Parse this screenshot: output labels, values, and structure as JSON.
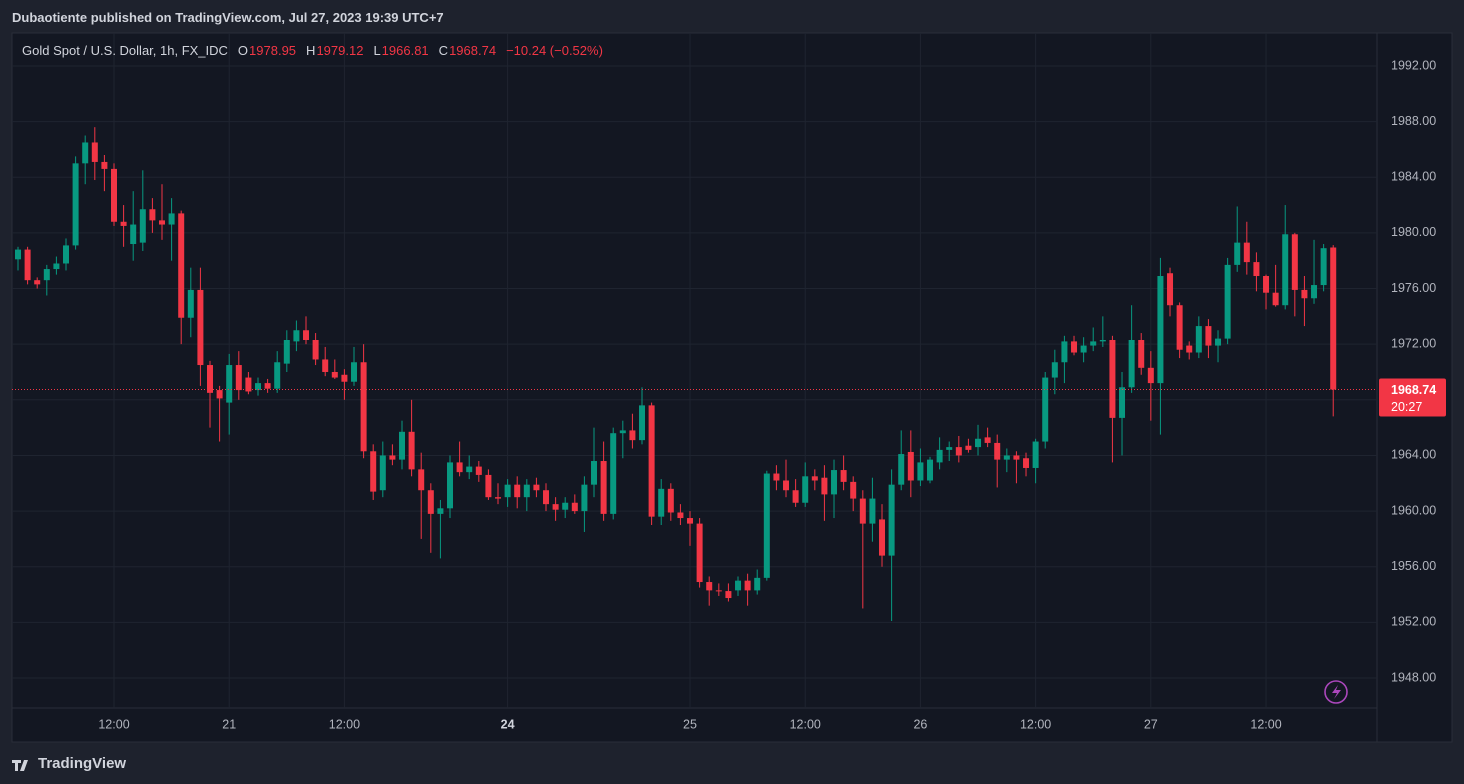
{
  "header": "Dubaotiente published on TradingView.com, Jul 27, 2023 19:39 UTC+7",
  "footer": "TradingView",
  "chart_data": {
    "type": "candlestick",
    "title": "Gold Spot / U.S. Dollar, 1h, FX_IDC",
    "legend": [
      {
        "label": "O",
        "value": "1978.95"
      },
      {
        "label": "H",
        "value": "1979.12"
      },
      {
        "label": "L",
        "value": "1966.81"
      },
      {
        "label": "C",
        "value": "1968.74"
      }
    ],
    "change": "−10.24 (−0.52%)",
    "up_color": "#089981",
    "down_color": "#f23645",
    "last_price": 1968.74,
    "countdown": "20:27",
    "grid": true,
    "xlim": [
      -0.625,
      141.56
    ],
    "xticks": [
      {
        "value": 10,
        "label": "12:00"
      },
      {
        "value": 22,
        "label": "21"
      },
      {
        "value": 34,
        "label": "12:00"
      },
      {
        "value": 51,
        "label": "24"
      },
      {
        "value": 70,
        "label": "25"
      },
      {
        "value": 82,
        "label": "12:00"
      },
      {
        "value": 94,
        "label": "26"
      },
      {
        "value": 106,
        "label": "12:00"
      },
      {
        "value": 118,
        "label": "27"
      },
      {
        "value": 130,
        "label": "12:00"
      }
    ],
    "ylim": [
      1943.4,
      1994.37
    ],
    "yticks": [
      {
        "value": 1948,
        "label": "1948.00"
      },
      {
        "value": 1952,
        "label": "1952.00"
      },
      {
        "value": 1956,
        "label": "1956.00"
      },
      {
        "value": 1960,
        "label": "1960.00"
      },
      {
        "value": 1964,
        "label": "1964.00"
      },
      {
        "value": 1968,
        "label": "1968.00"
      },
      {
        "value": 1972,
        "label": "1972.00"
      },
      {
        "value": 1976,
        "label": "1976.00"
      },
      {
        "value": 1980,
        "label": "1980.00"
      },
      {
        "value": 1984,
        "label": "1984.00"
      },
      {
        "value": 1988,
        "label": "1988.00"
      },
      {
        "value": 1992,
        "label": "1992.00"
      }
    ],
    "ohlc": [
      [
        1978.1,
        1979.0,
        1977.3,
        1978.8
      ],
      [
        1978.8,
        1979.0,
        1976.3,
        1976.6
      ],
      [
        1976.6,
        1976.8,
        1976.0,
        1976.3
      ],
      [
        1976.6,
        1977.7,
        1975.5,
        1977.4
      ],
      [
        1977.4,
        1978.3,
        1977.0,
        1977.8
      ],
      [
        1977.8,
        1979.6,
        1977.3,
        1979.1
      ],
      [
        1979.1,
        1985.5,
        1978.8,
        1985.0
      ],
      [
        1985.0,
        1987.0,
        1983.5,
        1986.5
      ],
      [
        1986.5,
        1987.6,
        1983.8,
        1985.1
      ],
      [
        1985.1,
        1985.6,
        1983.0,
        1984.6
      ],
      [
        1984.6,
        1985.0,
        1980.5,
        1980.8
      ],
      [
        1980.8,
        1982.0,
        1979.0,
        1980.5
      ],
      [
        1979.2,
        1983.0,
        1978.0,
        1980.6
      ],
      [
        1979.3,
        1984.5,
        1978.7,
        1981.7
      ],
      [
        1981.7,
        1982.5,
        1980.0,
        1980.9
      ],
      [
        1980.9,
        1983.5,
        1979.5,
        1980.6
      ],
      [
        1980.6,
        1982.5,
        1978.0,
        1981.4
      ],
      [
        1981.4,
        1981.6,
        1972.0,
        1973.9
      ],
      [
        1973.9,
        1977.5,
        1972.5,
        1975.9
      ],
      [
        1975.9,
        1977.5,
        1969.0,
        1970.5
      ],
      [
        1970.5,
        1970.8,
        1966.0,
        1968.5
      ],
      [
        1968.7,
        1969.0,
        1965.0,
        1968.1
      ],
      [
        1967.8,
        1971.3,
        1965.5,
        1970.5
      ],
      [
        1970.5,
        1971.5,
        1968.0,
        1968.7
      ],
      [
        1969.6,
        1970.0,
        1968.4,
        1968.6
      ],
      [
        1968.7,
        1969.6,
        1968.3,
        1969.2
      ],
      [
        1969.2,
        1969.5,
        1968.5,
        1968.8
      ],
      [
        1968.8,
        1971.5,
        1968.5,
        1970.7
      ],
      [
        1970.6,
        1973.0,
        1970.0,
        1972.3
      ],
      [
        1972.2,
        1973.7,
        1971.5,
        1973.0
      ],
      [
        1973.0,
        1974.0,
        1972.0,
        1972.3
      ],
      [
        1972.3,
        1972.8,
        1970.5,
        1970.9
      ],
      [
        1970.9,
        1971.8,
        1969.7,
        1970.0
      ],
      [
        1970.0,
        1970.9,
        1969.5,
        1969.6
      ],
      [
        1969.8,
        1970.2,
        1968.0,
        1969.3
      ],
      [
        1969.3,
        1971.8,
        1969.0,
        1970.7
      ],
      [
        1970.7,
        1972.0,
        1963.8,
        1964.3
      ],
      [
        1964.3,
        1964.8,
        1960.8,
        1961.4
      ],
      [
        1961.5,
        1965.0,
        1961.0,
        1964.0
      ],
      [
        1964.0,
        1964.8,
        1963.3,
        1963.7
      ],
      [
        1963.7,
        1966.5,
        1963.0,
        1965.7
      ],
      [
        1965.7,
        1968.0,
        1962.5,
        1963.0
      ],
      [
        1963.0,
        1964.2,
        1958.0,
        1961.5
      ],
      [
        1961.5,
        1962.0,
        1957.0,
        1959.8
      ],
      [
        1959.8,
        1960.8,
        1956.6,
        1960.2
      ],
      [
        1960.2,
        1964.0,
        1959.5,
        1963.5
      ],
      [
        1963.5,
        1965.0,
        1962.5,
        1962.8
      ],
      [
        1962.8,
        1964.0,
        1962.3,
        1963.2
      ],
      [
        1963.2,
        1963.6,
        1962.1,
        1962.6
      ],
      [
        1962.6,
        1963.0,
        1960.8,
        1961.0
      ],
      [
        1961.0,
        1962.0,
        1960.5,
        1960.9
      ],
      [
        1961.0,
        1962.3,
        1960.3,
        1961.9
      ],
      [
        1961.9,
        1962.5,
        1960.2,
        1961.0
      ],
      [
        1961.0,
        1962.3,
        1960.0,
        1961.9
      ],
      [
        1961.9,
        1962.4,
        1961.0,
        1961.5
      ],
      [
        1961.5,
        1962.0,
        1960.0,
        1960.5
      ],
      [
        1960.5,
        1961.0,
        1959.3,
        1960.1
      ],
      [
        1960.1,
        1961.0,
        1959.5,
        1960.6
      ],
      [
        1960.6,
        1961.2,
        1959.8,
        1960.0
      ],
      [
        1960.0,
        1962.5,
        1958.5,
        1961.9
      ],
      [
        1961.9,
        1966.0,
        1961.0,
        1963.6
      ],
      [
        1963.6,
        1965.0,
        1959.3,
        1959.8
      ],
      [
        1959.8,
        1966.0,
        1959.4,
        1965.6
      ],
      [
        1965.6,
        1966.5,
        1963.8,
        1965.8
      ],
      [
        1965.8,
        1967.0,
        1964.5,
        1965.1
      ],
      [
        1965.1,
        1968.9,
        1964.8,
        1967.6
      ],
      [
        1967.6,
        1967.8,
        1959.0,
        1959.6
      ],
      [
        1959.6,
        1962.3,
        1959.0,
        1961.6
      ],
      [
        1961.6,
        1962.0,
        1959.3,
        1959.9
      ],
      [
        1959.9,
        1960.5,
        1959.0,
        1959.5
      ],
      [
        1959.5,
        1960.0,
        1957.5,
        1959.1
      ],
      [
        1959.1,
        1959.5,
        1954.5,
        1954.9
      ],
      [
        1954.9,
        1955.3,
        1953.2,
        1954.3
      ],
      [
        1954.3,
        1954.8,
        1953.9,
        1954.25
      ],
      [
        1954.25,
        1954.8,
        1953.5,
        1953.75
      ],
      [
        1954.3,
        1955.3,
        1953.9,
        1955.0
      ],
      [
        1955.0,
        1955.5,
        1953.2,
        1954.3
      ],
      [
        1954.3,
        1955.8,
        1954.0,
        1955.2
      ],
      [
        1955.2,
        1962.9,
        1955.0,
        1962.7
      ],
      [
        1962.7,
        1963.3,
        1961.5,
        1962.2
      ],
      [
        1962.2,
        1963.7,
        1961.0,
        1961.5
      ],
      [
        1961.5,
        1962.3,
        1960.3,
        1960.6
      ],
      [
        1960.6,
        1963.5,
        1960.3,
        1962.5
      ],
      [
        1962.5,
        1963.0,
        1961.5,
        1962.2
      ],
      [
        1962.4,
        1963.3,
        1959.3,
        1961.2
      ],
      [
        1961.2,
        1963.7,
        1959.5,
        1962.95
      ],
      [
        1962.95,
        1964.0,
        1961.5,
        1962.1
      ],
      [
        1962.1,
        1962.5,
        1960.0,
        1960.9
      ],
      [
        1960.9,
        1961.5,
        1953.0,
        1959.1
      ],
      [
        1959.1,
        1962.4,
        1957.8,
        1960.9
      ],
      [
        1959.4,
        1960.5,
        1956.0,
        1956.8
      ],
      [
        1956.8,
        1963.0,
        1952.1,
        1961.9
      ],
      [
        1961.9,
        1965.8,
        1961.5,
        1964.1
      ],
      [
        1964.25,
        1965.8,
        1961.0,
        1962.2
      ],
      [
        1962.2,
        1964.5,
        1961.8,
        1963.5
      ],
      [
        1962.2,
        1963.9,
        1962.0,
        1963.7
      ],
      [
        1963.5,
        1965.3,
        1963.0,
        1964.4
      ],
      [
        1964.4,
        1965.0,
        1963.6,
        1964.6
      ],
      [
        1964.6,
        1965.4,
        1963.5,
        1964.0
      ],
      [
        1964.7,
        1965.2,
        1964.2,
        1964.4
      ],
      [
        1964.6,
        1966.2,
        1964.0,
        1965.2
      ],
      [
        1965.3,
        1966.0,
        1964.6,
        1964.9
      ],
      [
        1964.9,
        1965.5,
        1961.7,
        1963.7
      ],
      [
        1963.7,
        1964.5,
        1962.8,
        1964.0
      ],
      [
        1964.0,
        1964.3,
        1962.0,
        1963.7
      ],
      [
        1963.8,
        1964.2,
        1962.5,
        1963.1
      ],
      [
        1963.1,
        1965.2,
        1962.0,
        1965.0
      ],
      [
        1965.0,
        1970.0,
        1964.5,
        1969.6
      ],
      [
        1969.6,
        1971.6,
        1968.4,
        1970.7
      ],
      [
        1970.7,
        1972.6,
        1969.2,
        1972.2
      ],
      [
        1972.2,
        1972.6,
        1971.2,
        1971.4
      ],
      [
        1971.4,
        1972.5,
        1970.7,
        1971.9
      ],
      [
        1971.9,
        1973.2,
        1971.5,
        1972.2
      ],
      [
        1972.2,
        1974.0,
        1971.8,
        1972.3
      ],
      [
        1972.3,
        1972.6,
        1963.5,
        1966.7
      ],
      [
        1966.7,
        1970.0,
        1964.0,
        1968.9
      ],
      [
        1968.9,
        1974.8,
        1968.5,
        1972.3
      ],
      [
        1972.3,
        1972.8,
        1969.8,
        1970.3
      ],
      [
        1970.3,
        1971.5,
        1966.5,
        1969.2
      ],
      [
        1969.2,
        1978.2,
        1965.5,
        1976.9
      ],
      [
        1977.1,
        1977.5,
        1974.0,
        1974.8
      ],
      [
        1974.8,
        1975.0,
        1971.0,
        1971.6
      ],
      [
        1971.9,
        1972.2,
        1970.9,
        1971.4
      ],
      [
        1971.4,
        1974.0,
        1971.0,
        1973.3
      ],
      [
        1973.3,
        1973.8,
        1971.0,
        1971.9
      ],
      [
        1971.9,
        1973.0,
        1970.7,
        1972.4
      ],
      [
        1972.4,
        1978.2,
        1972.0,
        1977.7
      ],
      [
        1977.7,
        1981.9,
        1977.2,
        1979.3
      ],
      [
        1979.3,
        1980.8,
        1977.0,
        1977.9
      ],
      [
        1977.9,
        1978.6,
        1975.8,
        1976.9
      ],
      [
        1976.9,
        1977.0,
        1974.5,
        1975.7
      ],
      [
        1975.7,
        1977.7,
        1974.7,
        1974.8
      ],
      [
        1974.8,
        1982.0,
        1974.5,
        1979.9
      ],
      [
        1979.9,
        1980.0,
        1974.0,
        1975.9
      ],
      [
        1975.9,
        1976.9,
        1973.3,
        1975.3
      ],
      [
        1975.3,
        1979.5,
        1974.9,
        1976.25
      ],
      [
        1976.25,
        1979.2,
        1975.8,
        1978.9
      ],
      [
        1978.95,
        1979.12,
        1966.81,
        1968.74
      ]
    ]
  }
}
